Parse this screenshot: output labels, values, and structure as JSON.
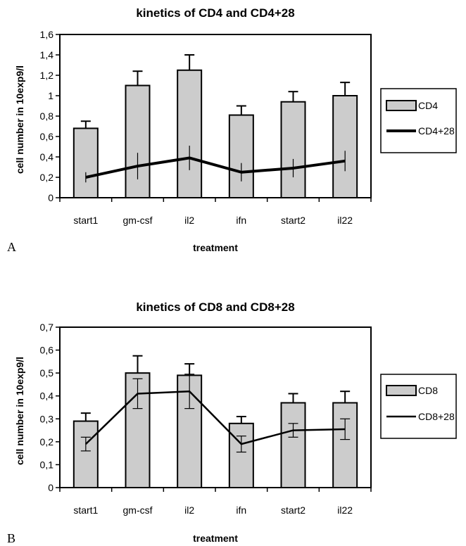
{
  "chart_data": [
    {
      "panel_label": "A",
      "type": "bar",
      "title": "kinetics of CD4 and CD4+28",
      "xlabel": "treatment",
      "ylabel": "cell number in 10exp9/l",
      "categories": [
        "start1",
        "gm-csf",
        "il2",
        "ifn",
        "start2",
        "il22"
      ],
      "ylim": [
        0,
        1.6
      ],
      "yticks": [
        "0",
        "0,2",
        "0,4",
        "0,6",
        "0,8",
        "1",
        "1,2",
        "1,4",
        "1,6"
      ],
      "ytick_values": [
        0,
        0.2,
        0.4,
        0.6,
        0.8,
        1.0,
        1.2,
        1.4,
        1.6
      ],
      "series": [
        {
          "name": "CD4",
          "kind": "bar",
          "values": [
            0.68,
            1.1,
            1.25,
            0.81,
            0.94,
            1.0
          ],
          "errors": [
            0.07,
            0.14,
            0.15,
            0.09,
            0.1,
            0.13
          ],
          "color": "#cccccc"
        },
        {
          "name": "CD4+28",
          "kind": "line",
          "values": [
            0.2,
            0.31,
            0.39,
            0.25,
            0.29,
            0.36
          ],
          "errors": [
            0.05,
            0.13,
            0.12,
            0.09,
            0.09,
            0.1
          ],
          "color": "#000000"
        }
      ],
      "legend_position": "right",
      "grid": false
    },
    {
      "panel_label": "B",
      "type": "bar",
      "title": "kinetics of CD8 and CD8+28",
      "xlabel": "treatment",
      "ylabel": "cell number in 10exp9/l",
      "categories": [
        "start1",
        "gm-csf",
        "il2",
        "ifn",
        "start2",
        "il22"
      ],
      "ylim": [
        0,
        0.7
      ],
      "yticks": [
        "0",
        "0,1",
        "0,2",
        "0,3",
        "0,4",
        "0,5",
        "0,6",
        "0,7"
      ],
      "ytick_values": [
        0,
        0.1,
        0.2,
        0.3,
        0.4,
        0.5,
        0.6,
        0.7
      ],
      "series": [
        {
          "name": "CD8",
          "kind": "bar",
          "values": [
            0.29,
            0.5,
            0.49,
            0.28,
            0.37,
            0.37
          ],
          "errors": [
            0.035,
            0.075,
            0.05,
            0.03,
            0.04,
            0.05
          ],
          "color": "#cccccc"
        },
        {
          "name": "CD8+28",
          "kind": "line",
          "values": [
            0.19,
            0.41,
            0.42,
            0.19,
            0.25,
            0.255
          ],
          "errors": [
            0.03,
            0.065,
            0.075,
            0.035,
            0.03,
            0.045
          ],
          "color": "#000000"
        }
      ],
      "legend_position": "right",
      "grid": false
    }
  ]
}
